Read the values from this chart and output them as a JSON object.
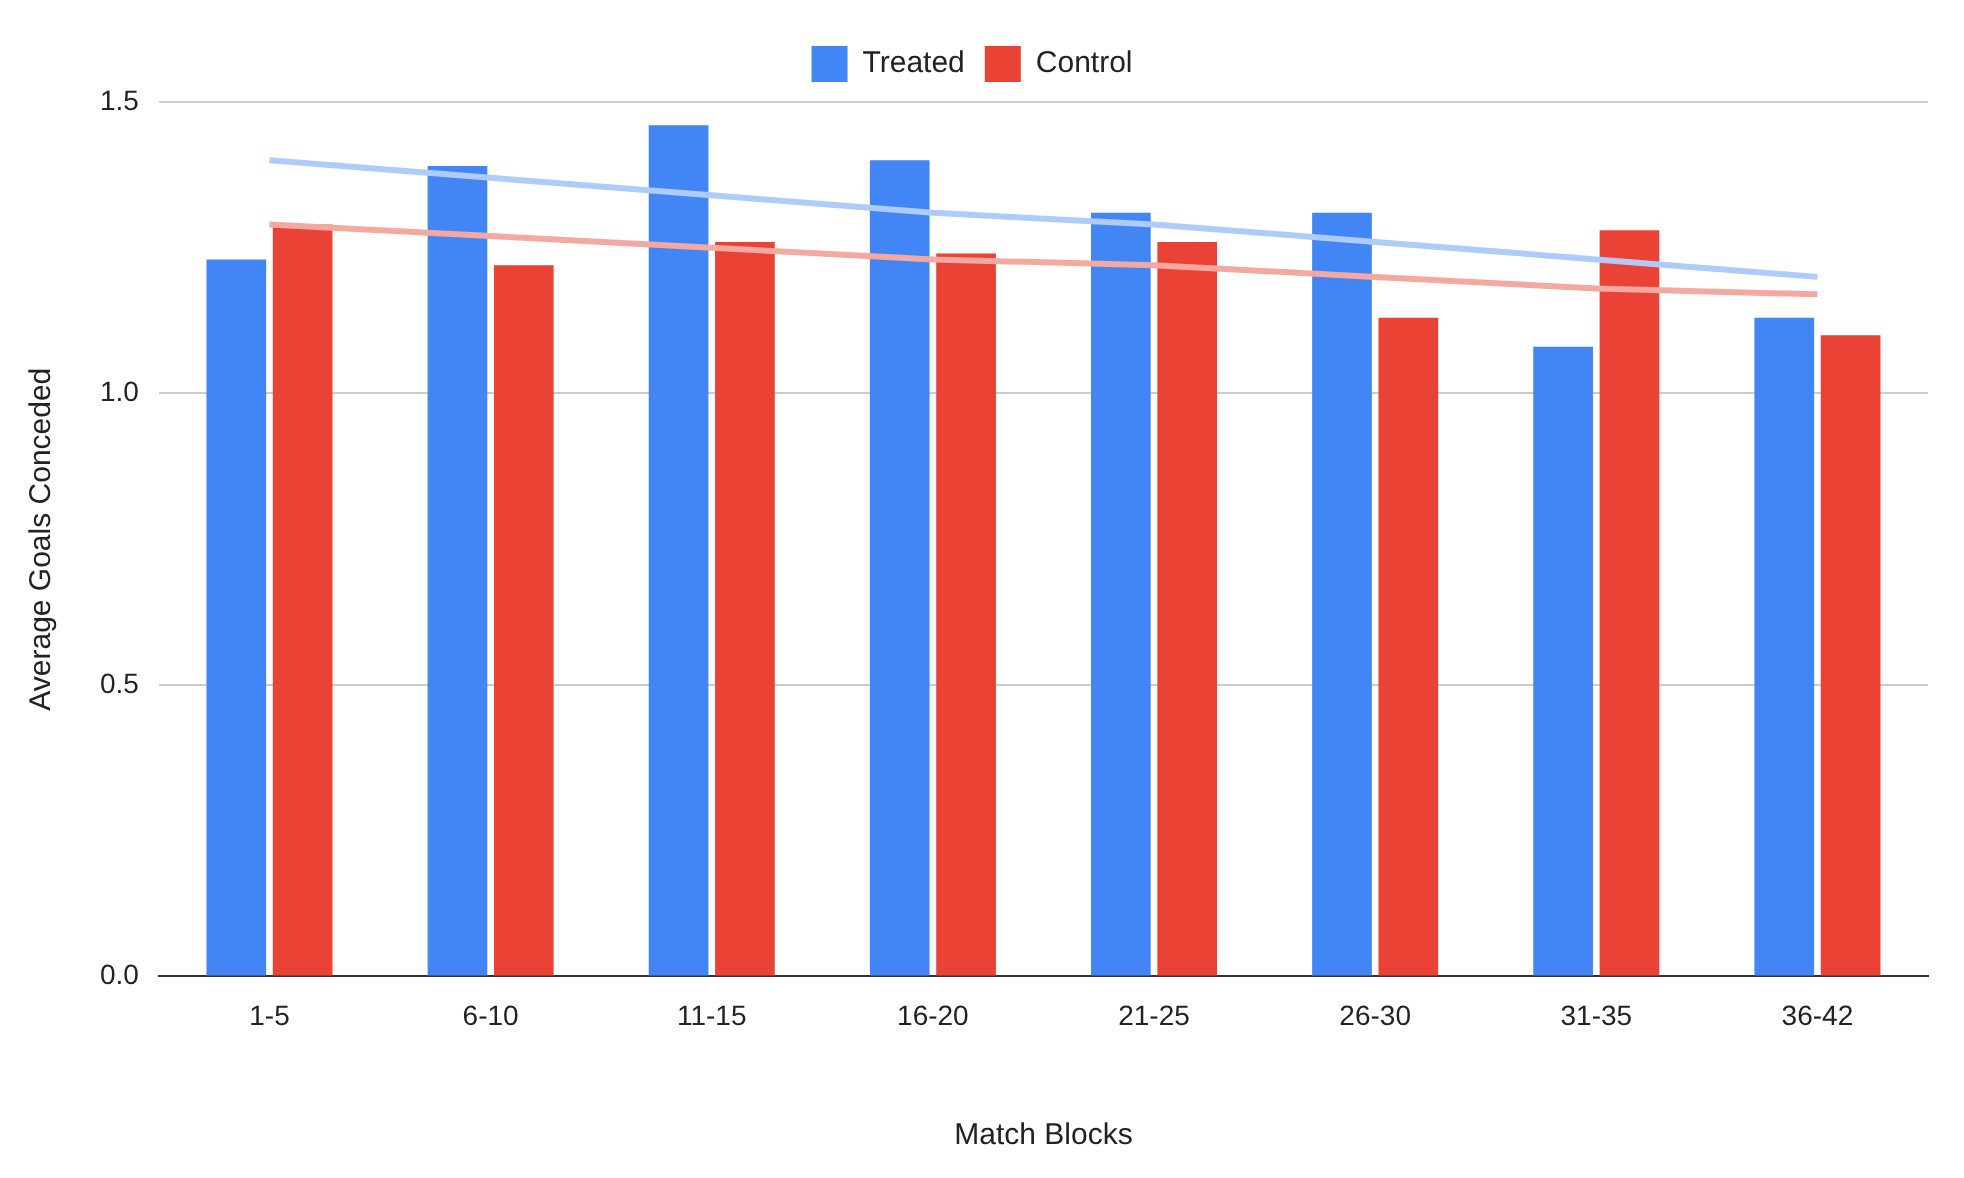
{
  "chart_data": {
    "type": "bar",
    "xlabel": "Match Blocks",
    "ylabel": "Average Goals Conceded",
    "categories": [
      "1-5",
      "6-10",
      "11-15",
      "16-20",
      "21-25",
      "26-30",
      "31-35",
      "36-42"
    ],
    "series": [
      {
        "name": "Treated",
        "color": "#4285f4",
        "values": [
          1.23,
          1.39,
          1.46,
          1.4,
          1.31,
          1.31,
          1.08,
          1.13
        ]
      },
      {
        "name": "Control",
        "color": "#ea4335",
        "values": [
          1.29,
          1.22,
          1.26,
          1.24,
          1.26,
          1.13,
          1.28,
          1.1
        ]
      },
      {
        "type": "line",
        "color": "#aecbfa",
        "values": [
          1.4,
          1.37,
          1.34,
          1.31,
          1.29,
          1.26,
          1.23,
          1.2
        ]
      },
      {
        "type": "line",
        "color": "#f4a9a0",
        "values": [
          1.29,
          1.27,
          1.25,
          1.23,
          1.22,
          1.2,
          1.18,
          1.17
        ]
      }
    ],
    "ylim": [
      0,
      1.5
    ],
    "yticks": [
      {
        "value": 0,
        "label": "0.0"
      },
      {
        "value": 0.5,
        "label": "0.5"
      },
      {
        "value": 1,
        "label": "1.0"
      },
      {
        "value": 1.5,
        "label": "1.5"
      }
    ],
    "grid": "y",
    "legend": "top"
  }
}
